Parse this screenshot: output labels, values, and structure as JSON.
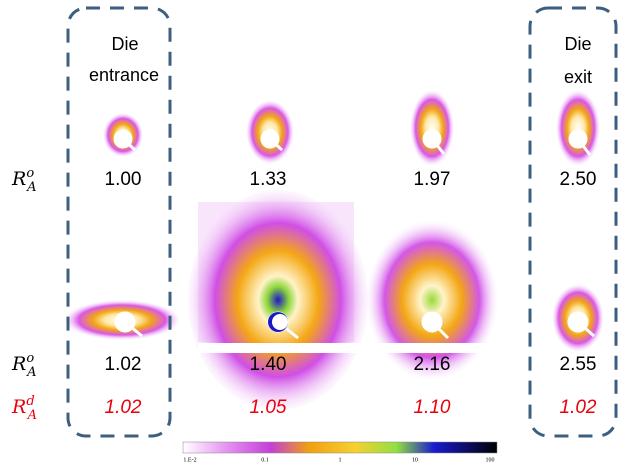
{
  "annotations": {
    "left": [
      "Die",
      "entrance"
    ],
    "right": [
      "Die",
      "exit"
    ]
  },
  "rows": [
    {
      "label": {
        "base": "R",
        "sub": "A",
        "sup": "o"
      },
      "values": [
        "1.00",
        "1.33",
        "1.97",
        "2.50"
      ]
    },
    {
      "label": {
        "base": "R",
        "sub": "A",
        "sup": "o"
      },
      "values": [
        "1.02",
        "1.40",
        "2.16",
        "2.55"
      ]
    },
    {
      "label": {
        "base": "R",
        "sub": "A",
        "sup": "d"
      },
      "values": [
        "1.02",
        "1.05",
        "1.10",
        "1.02"
      ]
    }
  ],
  "colorbar": {
    "ticks": [
      "1.E-2",
      "0.1",
      "1",
      "10",
      "100"
    ]
  }
}
